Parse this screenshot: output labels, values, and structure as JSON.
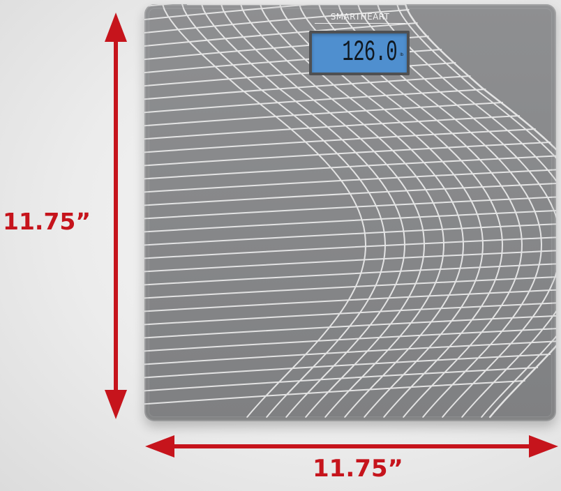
{
  "product": {
    "brand": "SMARTHEART",
    "display_reading": "126.0",
    "display_unit": "lb"
  },
  "dimensions": {
    "height_label": "11.75”",
    "width_label": "11.75”"
  },
  "colors": {
    "arrow": "#c6141c",
    "scale_surface": "#8a8b8d",
    "display_backlight": "#4f8fcf",
    "pattern_lines": "#eeeeee"
  }
}
